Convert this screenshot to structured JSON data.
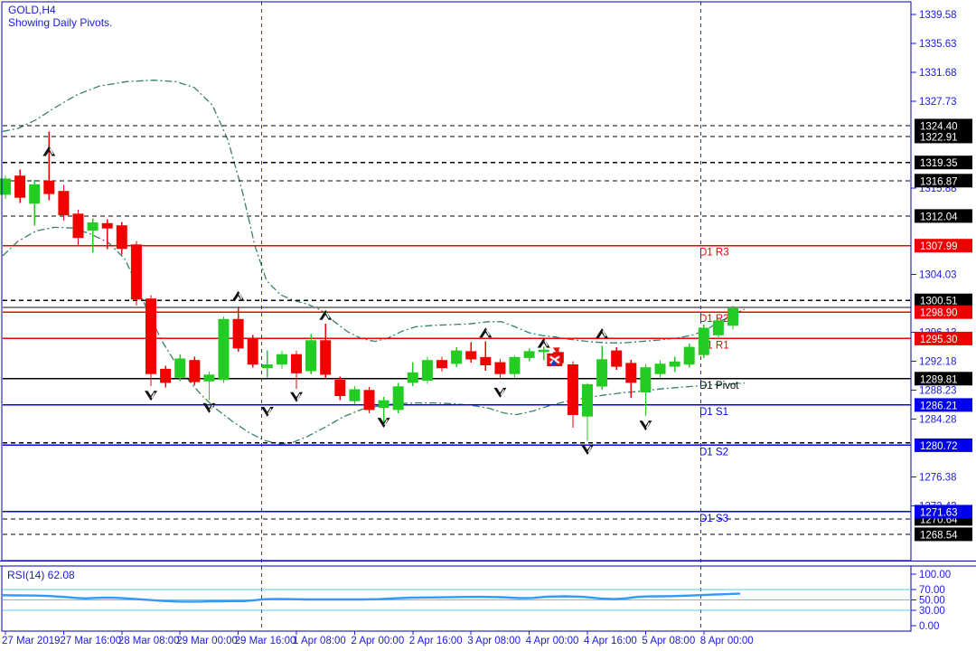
{
  "header": {
    "symbol": "GOLD,H4",
    "subtitle": "Showing Daily Pivots."
  },
  "colors": {
    "frame": "#0000b6",
    "text_blue": "#1a1adf",
    "candle_up": "#22cc22",
    "candle_down": "#f20000",
    "pivot_r": "#f00000",
    "pivot_s": "#0000ff",
    "pivot_p": "#000000",
    "dashed_level": "#000000",
    "band": "#35806e",
    "bid_line": "#888888",
    "separator": "#2a2ae0",
    "rsi_line": "#3399ff",
    "rsi_level": "#55ccee",
    "badge_black": "#000000",
    "badge_red": "#ee0000",
    "badge_blue": "#0000ee",
    "arrow": "#111111",
    "marker_red": "#ee1111",
    "marker_blue": "#1144cc"
  },
  "chart_data": {
    "type": "candlestick",
    "title": "GOLD,H4",
    "subtitle": "Showing Daily Pivots.",
    "price_axis": {
      "range_top": 1341.56,
      "range_bottom": 1266.0,
      "plain_ticks": [
        "1339.58",
        "1335.63",
        "1331.68",
        "1327.73",
        "1315.88",
        "1304.03",
        "1296.13",
        "1292.18",
        "1288.23",
        "1284.28",
        "1276.38",
        "1272.43"
      ],
      "badges": [
        {
          "value": "1324.40",
          "color": "black"
        },
        {
          "value": "1322.91",
          "color": "black"
        },
        {
          "value": "1319.35",
          "color": "black"
        },
        {
          "value": "1316.87",
          "color": "black"
        },
        {
          "value": "1312.04",
          "color": "black"
        },
        {
          "value": "1307.99",
          "color": "red"
        },
        {
          "value": "1300.51",
          "color": "black"
        },
        {
          "value": "1298.90",
          "color": "red"
        },
        {
          "value": "1295.30",
          "color": "red"
        },
        {
          "value": "1289.81",
          "color": "black"
        },
        {
          "value": "1286.21",
          "color": "blue"
        },
        {
          "value": "1280.72",
          "color": "blue"
        },
        {
          "value": "1270.64",
          "color": "black"
        },
        {
          "value": "1271.63",
          "color": "blue"
        },
        {
          "value": "1268.54",
          "color": "black"
        }
      ]
    },
    "time_axis": {
      "labels": [
        "27 Mar 2019",
        "27 Mar 16:00",
        "28 Mar 08:00",
        "29 Mar 00:00",
        "29 Mar 16:00",
        "1 Apr 08:00",
        "2 Apr 00:00",
        "2 Apr 16:00",
        "3 Apr 08:00",
        "4 Apr 00:00",
        "4 Apr 16:00",
        "5 Apr 08:00",
        "8 Apr 00:00"
      ],
      "label_bar_indices": [
        0,
        4,
        8,
        12,
        16,
        20,
        24,
        28,
        32,
        36,
        40,
        44,
        48
      ]
    },
    "separators_bar_indices": [
      17.6,
      47.8
    ],
    "pivots": [
      {
        "label": "D1 R3",
        "value": "1307.99",
        "price": 1307.99,
        "color": "red"
      },
      {
        "label": "D1 R2",
        "value": "1298.90",
        "price": 1298.9,
        "color": "red"
      },
      {
        "label": "D1 R1",
        "value": "1295.30",
        "price": 1295.3,
        "color": "red"
      },
      {
        "label": "D1 Pivot",
        "value": "1289.81",
        "price": 1289.81,
        "color": "black"
      },
      {
        "label": "D1 S1",
        "value": "1286.21",
        "price": 1286.21,
        "color": "blue"
      },
      {
        "label": "D1 S2",
        "value": "1280.72",
        "price": 1280.72,
        "color": "blue"
      },
      {
        "label": "D1 S3",
        "value": "1271.63",
        "price": 1271.63,
        "color": "blue"
      }
    ],
    "dashed_levels": [
      1324.4,
      1322.91,
      1319.35,
      1316.87,
      1312.04,
      1300.51,
      1281.05,
      1270.64,
      1268.54
    ],
    "bid_price": 1299.55,
    "candles": [
      [
        1315.0,
        1317.6,
        1314.4,
        1317.1
      ],
      [
        1317.5,
        1318.4,
        1313.8,
        1314.6
      ],
      [
        1313.8,
        1317.0,
        1310.7,
        1316.3
      ],
      [
        1316.8,
        1323.6,
        1314.2,
        1315.1
      ],
      [
        1315.4,
        1316.3,
        1311.4,
        1312.2
      ],
      [
        1312.3,
        1312.9,
        1308.1,
        1309.1
      ],
      [
        1310.1,
        1311.7,
        1307.0,
        1311.1
      ],
      [
        1311.0,
        1311.6,
        1307.5,
        1310.4
      ],
      [
        1310.7,
        1311.2,
        1306.8,
        1307.6
      ],
      [
        1308.1,
        1308.6,
        1299.8,
        1300.7
      ],
      [
        1300.7,
        1301.2,
        1288.8,
        1290.5
      ],
      [
        1291.1,
        1291.6,
        1288.6,
        1289.3
      ],
      [
        1290.0,
        1293.1,
        1289.5,
        1292.5
      ],
      [
        1292.3,
        1292.8,
        1288.9,
        1289.4
      ],
      [
        1289.5,
        1290.8,
        1286.9,
        1290.3
      ],
      [
        1289.7,
        1298.3,
        1289.2,
        1297.9
      ],
      [
        1297.9,
        1299.6,
        1293.5,
        1294.0
      ],
      [
        1295.3,
        1295.8,
        1291.3,
        1291.8
      ],
      [
        1291.3,
        1293.7,
        1290.0,
        1291.7
      ],
      [
        1291.8,
        1293.6,
        1291.2,
        1293.1
      ],
      [
        1293.1,
        1293.6,
        1288.4,
        1290.6
      ],
      [
        1290.9,
        1295.9,
        1290.4,
        1295.0
      ],
      [
        1295.0,
        1297.3,
        1289.9,
        1290.4
      ],
      [
        1289.6,
        1290.1,
        1286.9,
        1287.5
      ],
      [
        1286.8,
        1288.8,
        1286.3,
        1288.3
      ],
      [
        1288.2,
        1288.7,
        1285.1,
        1285.6
      ],
      [
        1285.9,
        1287.3,
        1283.5,
        1286.8
      ],
      [
        1285.6,
        1289.2,
        1285.1,
        1288.7
      ],
      [
        1289.3,
        1292.1,
        1288.8,
        1290.6
      ],
      [
        1289.6,
        1292.8,
        1289.1,
        1292.3
      ],
      [
        1292.3,
        1292.8,
        1290.8,
        1291.3
      ],
      [
        1291.9,
        1294.1,
        1291.4,
        1293.6
      ],
      [
        1293.5,
        1294.8,
        1292.0,
        1292.5
      ],
      [
        1292.7,
        1294.9,
        1290.9,
        1291.7
      ],
      [
        1292.0,
        1292.5,
        1289.9,
        1290.5
      ],
      [
        1290.5,
        1293.0,
        1290.0,
        1292.7
      ],
      [
        1292.7,
        1293.9,
        1292.2,
        1293.5
      ],
      [
        1293.5,
        1294.2,
        1292.3,
        1293.7
      ],
      [
        1293.4,
        1293.9,
        1291.5,
        1292.0
      ],
      [
        1291.7,
        1292.2,
        1283.1,
        1284.9
      ],
      [
        1284.7,
        1289.2,
        1281.3,
        1289.0
      ],
      [
        1288.8,
        1294.3,
        1288.3,
        1292.4
      ],
      [
        1293.6,
        1294.1,
        1291.0,
        1291.5
      ],
      [
        1291.9,
        1292.4,
        1287.2,
        1289.3
      ],
      [
        1288.0,
        1291.8,
        1284.7,
        1291.3
      ],
      [
        1290.5,
        1292.3,
        1290.0,
        1291.8
      ],
      [
        1291.5,
        1292.8,
        1290.7,
        1292.1
      ],
      [
        1291.8,
        1294.6,
        1291.3,
        1294.1
      ],
      [
        1293.1,
        1297.2,
        1292.6,
        1296.7
      ],
      [
        1295.8,
        1298.2,
        1295.3,
        1297.7
      ],
      [
        1297.1,
        1299.8,
        1296.5,
        1299.4
      ]
    ],
    "arrows": [
      {
        "bar": 3,
        "dir": "up",
        "price": 1321.6
      },
      {
        "bar": 10,
        "dir": "down",
        "price": 1286.8
      },
      {
        "bar": 14,
        "dir": "down",
        "price": 1285.1
      },
      {
        "bar": 16,
        "dir": "up",
        "price": 1301.8
      },
      {
        "bar": 18,
        "dir": "down",
        "price": 1284.6
      },
      {
        "bar": 20,
        "dir": "down",
        "price": 1286.6
      },
      {
        "bar": 22,
        "dir": "up",
        "price": 1299.2
      },
      {
        "bar": 26,
        "dir": "down",
        "price": 1283.1
      },
      {
        "bar": 33,
        "dir": "up",
        "price": 1296.8
      },
      {
        "bar": 34,
        "dir": "down",
        "price": 1287.2
      },
      {
        "bar": 37,
        "dir": "up",
        "price": 1295.4
      },
      {
        "bar": 40,
        "dir": "down",
        "price": 1279.4
      },
      {
        "bar": 41,
        "dir": "up",
        "price": 1296.7
      },
      {
        "bar": 44,
        "dir": "down",
        "price": 1282.7
      }
    ],
    "trade_marker": {
      "bar": 38,
      "price": 1293.2
    },
    "bands": {
      "upper": [
        [
          3,
          1323.6
        ],
        [
          20,
          1324.0
        ],
        [
          40,
          1325.2
        ],
        [
          60,
          1326.8
        ],
        [
          85,
          1328.6
        ],
        [
          110,
          1329.8
        ],
        [
          140,
          1330.4
        ],
        [
          170,
          1330.6
        ],
        [
          195,
          1330.4
        ],
        [
          215,
          1329.6
        ],
        [
          235,
          1327.2
        ],
        [
          252,
          1322.5
        ],
        [
          268,
          1315.5
        ],
        [
          282,
          1308.0
        ],
        [
          295,
          1303.2
        ],
        [
          310,
          1301.3
        ],
        [
          325,
          1300.5
        ],
        [
          340,
          1300.0
        ],
        [
          355,
          1299.2
        ],
        [
          370,
          1297.6
        ],
        [
          385,
          1296.2
        ],
        [
          400,
          1295.3
        ],
        [
          415,
          1294.9
        ],
        [
          430,
          1295.4
        ],
        [
          445,
          1296.3
        ],
        [
          460,
          1296.9
        ],
        [
          480,
          1297.1
        ],
        [
          500,
          1297.2
        ],
        [
          520,
          1297.3
        ],
        [
          540,
          1297.6
        ],
        [
          555,
          1297.6
        ],
        [
          570,
          1296.9
        ],
        [
          585,
          1296.1
        ],
        [
          600,
          1295.7
        ],
        [
          615,
          1295.5
        ],
        [
          630,
          1295.2
        ],
        [
          650,
          1294.9
        ],
        [
          670,
          1294.7
        ],
        [
          690,
          1294.7
        ],
        [
          710,
          1294.9
        ],
        [
          730,
          1295.1
        ],
        [
          750,
          1295.4
        ],
        [
          765,
          1295.7
        ],
        [
          780,
          1296.4
        ],
        [
          795,
          1297.5
        ],
        [
          810,
          1298.5
        ],
        [
          824,
          1299.3
        ]
      ],
      "lower": [
        [
          3,
          1306.6
        ],
        [
          20,
          1308.6
        ],
        [
          40,
          1310.0
        ],
        [
          60,
          1310.5
        ],
        [
          80,
          1310.4
        ],
        [
          100,
          1309.6
        ],
        [
          120,
          1308.4
        ],
        [
          138,
          1306.2
        ],
        [
          152,
          1302.5
        ],
        [
          165,
          1298.5
        ],
        [
          180,
          1294.8
        ],
        [
          195,
          1291.8
        ],
        [
          210,
          1289.4
        ],
        [
          225,
          1287.3
        ],
        [
          240,
          1285.6
        ],
        [
          258,
          1283.9
        ],
        [
          275,
          1282.5
        ],
        [
          292,
          1281.4
        ],
        [
          308,
          1280.9
        ],
        [
          322,
          1281.0
        ],
        [
          340,
          1281.9
        ],
        [
          360,
          1283.2
        ],
        [
          380,
          1284.6
        ],
        [
          400,
          1285.6
        ],
        [
          420,
          1286.1
        ],
        [
          440,
          1286.4
        ],
        [
          460,
          1286.5
        ],
        [
          480,
          1286.5
        ],
        [
          500,
          1286.4
        ],
        [
          520,
          1286.2
        ],
        [
          540,
          1285.8
        ],
        [
          558,
          1285.1
        ],
        [
          572,
          1284.9
        ],
        [
          590,
          1285.4
        ],
        [
          610,
          1286.2
        ],
        [
          630,
          1286.8
        ],
        [
          650,
          1287.2
        ],
        [
          670,
          1287.6
        ],
        [
          690,
          1287.9
        ],
        [
          710,
          1288.1
        ],
        [
          730,
          1288.4
        ],
        [
          750,
          1288.6
        ],
        [
          770,
          1288.8
        ],
        [
          790,
          1289.0
        ],
        [
          810,
          1289.1
        ],
        [
          824,
          1289.2
        ]
      ]
    },
    "rsi": {
      "label": "RSI(14) 62.08",
      "axis_labels": [
        "100.00",
        "70.00",
        "50.00",
        "30.00",
        "0.00"
      ],
      "axis_values": [
        100,
        70,
        50,
        30,
        0
      ],
      "level_lines": [
        70,
        50,
        30
      ],
      "points": [
        [
          3,
          59.2
        ],
        [
          20,
          58.8
        ],
        [
          40,
          58.4
        ],
        [
          55,
          57.6
        ],
        [
          70,
          55.8
        ],
        [
          85,
          53.8
        ],
        [
          95,
          53.0
        ],
        [
          105,
          53.8
        ],
        [
          115,
          54.6
        ],
        [
          125,
          54.4
        ],
        [
          140,
          53.0
        ],
        [
          160,
          50.6
        ],
        [
          180,
          48.0
        ],
        [
          195,
          46.8
        ],
        [
          210,
          46.6
        ],
        [
          225,
          46.9
        ],
        [
          235,
          47.6
        ],
        [
          245,
          47.3
        ],
        [
          255,
          47.7
        ],
        [
          270,
          47.7
        ],
        [
          283,
          49.6
        ],
        [
          293,
          51.4
        ],
        [
          305,
          52.0
        ],
        [
          320,
          51.6
        ],
        [
          340,
          50.9
        ],
        [
          360,
          50.8
        ],
        [
          380,
          50.8
        ],
        [
          400,
          50.9
        ],
        [
          420,
          51.5
        ],
        [
          435,
          53.0
        ],
        [
          455,
          54.3
        ],
        [
          475,
          54.8
        ],
        [
          500,
          55.4
        ],
        [
          530,
          55.9
        ],
        [
          555,
          55.3
        ],
        [
          575,
          53.5
        ],
        [
          590,
          53.9
        ],
        [
          605,
          56.3
        ],
        [
          625,
          57.0
        ],
        [
          645,
          56.0
        ],
        [
          665,
          52.8
        ],
        [
          680,
          51.5
        ],
        [
          692,
          52.9
        ],
        [
          705,
          55.8
        ],
        [
          715,
          56.7
        ],
        [
          730,
          57.1
        ],
        [
          745,
          57.4
        ],
        [
          760,
          58.2
        ],
        [
          775,
          59.3
        ],
        [
          790,
          60.3
        ],
        [
          805,
          61.2
        ],
        [
          818,
          62.08
        ]
      ]
    }
  }
}
